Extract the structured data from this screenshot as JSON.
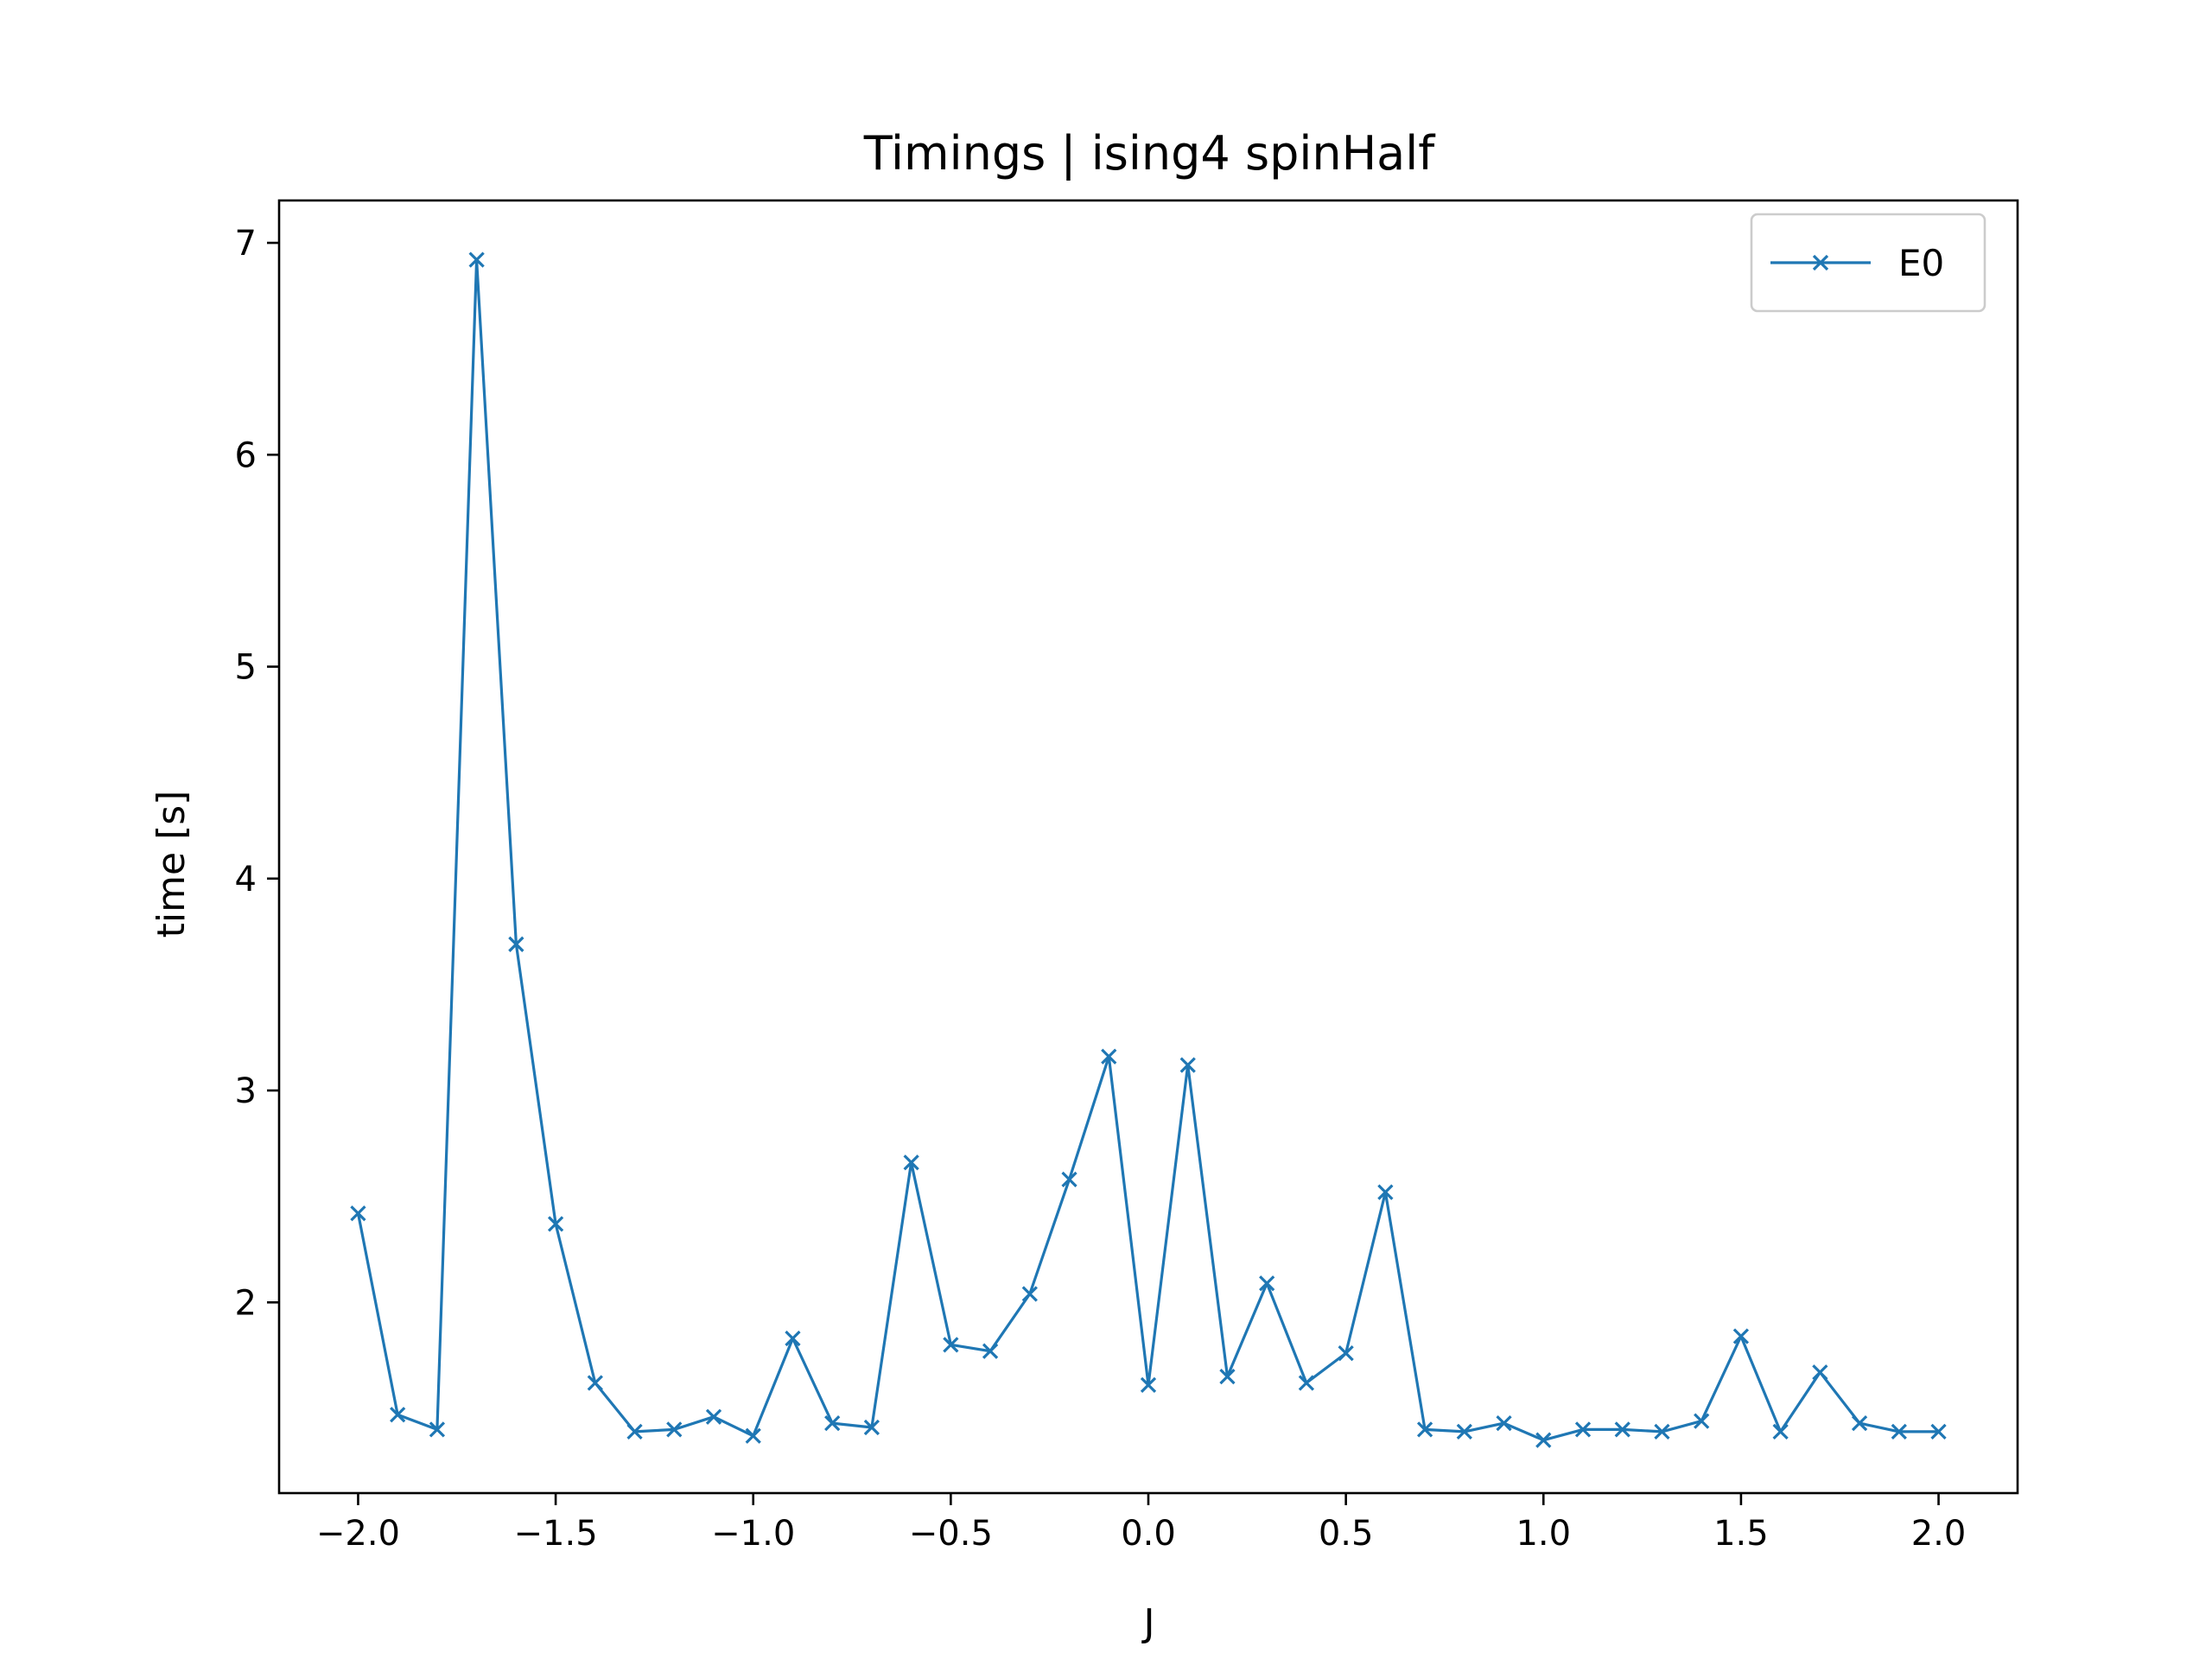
{
  "chart_data": {
    "type": "line",
    "title": "Timings | ising4 spinHalf",
    "xlabel": "J",
    "ylabel": "time [s]",
    "xlim": [
      -2.2,
      2.2
    ],
    "ylim": [
      1.1,
      7.2
    ],
    "xticks": [
      -2.0,
      -1.5,
      -1.0,
      -0.5,
      0.0,
      0.5,
      1.0,
      1.5,
      2.0
    ],
    "xtick_labels": [
      "−2.0",
      "−1.5",
      "−1.0",
      "−0.5",
      "0.0",
      "0.5",
      "1.0",
      "1.5",
      "2.0"
    ],
    "yticks": [
      2,
      3,
      4,
      5,
      6,
      7
    ],
    "ytick_labels": [
      "2",
      "3",
      "4",
      "5",
      "6",
      "7"
    ],
    "grid": false,
    "legend_position": "top-right",
    "series": [
      {
        "name": "E0",
        "color": "#1f77b4",
        "marker": "x",
        "x": [
          -2.0,
          -1.9,
          -1.8,
          -1.7,
          -1.6,
          -1.5,
          -1.4,
          -1.3,
          -1.2,
          -1.1,
          -1.0,
          -0.9,
          -0.8,
          -0.7,
          -0.6,
          -0.5,
          -0.4,
          -0.3,
          -0.2,
          -0.1,
          0.0,
          0.1,
          0.2,
          0.3,
          0.4,
          0.5,
          0.6,
          0.7,
          0.8,
          0.9,
          1.0,
          1.1,
          1.2,
          1.3,
          1.4,
          1.5,
          1.6,
          1.7,
          1.8,
          1.9,
          2.0
        ],
        "y": [
          2.42,
          1.47,
          1.4,
          6.92,
          3.69,
          2.37,
          1.62,
          1.39,
          1.4,
          1.46,
          1.37,
          1.83,
          1.43,
          1.41,
          2.66,
          1.8,
          1.77,
          2.04,
          2.58,
          3.16,
          1.61,
          3.12,
          1.65,
          2.09,
          1.62,
          1.76,
          2.52,
          1.4,
          1.39,
          1.43,
          1.35,
          1.4,
          1.4,
          1.39,
          1.44,
          1.84,
          1.39,
          1.67,
          1.43,
          1.39,
          1.39
        ]
      }
    ]
  }
}
